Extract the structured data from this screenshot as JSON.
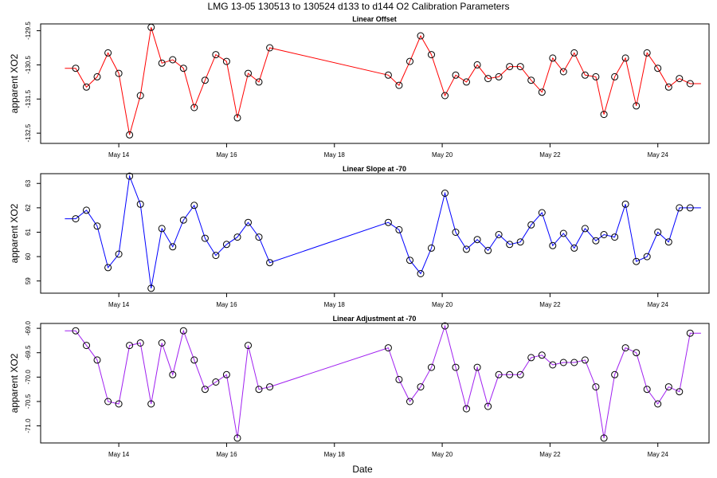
{
  "figure": {
    "title": "LMG   13-05    130513 to 130524    d133 to d144   O2 Calibration Parameters",
    "xlabel": "Date"
  },
  "x_ticks": [
    "May 14",
    "May 16",
    "May 18",
    "May 20",
    "May 22",
    "May 24"
  ],
  "x_tick_values": [
    14,
    16,
    18,
    20,
    22,
    24
  ],
  "xlim": [
    12.55,
    24.95
  ],
  "chart_data": [
    {
      "type": "line",
      "title": "Linear Offset",
      "ylabel": "apparent XO2",
      "color": "#ff0000",
      "ylim": [
        -132.8,
        -129.3
      ],
      "y_ticks": [
        -129.5,
        -130.5,
        -131.5,
        -132.5
      ],
      "y_tick_labels": [
        "-129.5",
        "-130.5",
        "-131.5",
        "-132.5"
      ],
      "x": [
        13.0,
        13.2,
        13.4,
        13.6,
        13.8,
        14.0,
        14.2,
        14.4,
        14.6,
        14.8,
        15.0,
        15.2,
        15.4,
        15.6,
        15.8,
        16.0,
        16.2,
        16.4,
        16.6,
        16.8,
        19.0,
        19.2,
        19.4,
        19.6,
        19.8,
        20.05,
        20.25,
        20.45,
        20.65,
        20.85,
        21.05,
        21.25,
        21.45,
        21.65,
        21.85,
        22.05,
        22.25,
        22.45,
        22.65,
        22.85,
        23.0,
        23.2,
        23.4,
        23.6,
        23.8,
        24.0,
        24.2,
        24.4,
        24.6,
        24.8
      ],
      "values": [
        -130.6,
        -130.6,
        -131.15,
        -130.85,
        -130.15,
        -130.75,
        -132.55,
        -131.4,
        -129.4,
        -130.45,
        -130.35,
        -130.6,
        -131.75,
        -130.95,
        -130.2,
        -130.4,
        -132.05,
        -130.75,
        -131.0,
        -130.0,
        -130.8,
        -131.1,
        -130.4,
        -129.65,
        -130.2,
        -131.4,
        -130.8,
        -131.0,
        -130.5,
        -130.9,
        -130.85,
        -130.55,
        -130.55,
        -130.95,
        -131.3,
        -130.3,
        -130.7,
        -130.15,
        -130.8,
        -130.85,
        -131.95,
        -130.85,
        -130.3,
        -131.7,
        -130.15,
        -130.6,
        -131.15,
        -130.9,
        -131.05,
        -131.05
      ],
      "markers": [
        false,
        true,
        true,
        true,
        true,
        true,
        true,
        true,
        true,
        true,
        true,
        true,
        true,
        true,
        true,
        true,
        true,
        true,
        true,
        true,
        true,
        true,
        true,
        true,
        true,
        true,
        true,
        true,
        true,
        true,
        true,
        true,
        true,
        true,
        true,
        true,
        true,
        true,
        true,
        true,
        true,
        true,
        true,
        true,
        true,
        true,
        true,
        true,
        true,
        false
      ]
    },
    {
      "type": "line",
      "title": "Linear Slope at -70",
      "ylabel": "apparent XO2",
      "color": "#0000ff",
      "ylim": [
        58.5,
        63.4
      ],
      "y_ticks": [
        59,
        60,
        61,
        62,
        63
      ],
      "y_tick_labels": [
        "59",
        "60",
        "61",
        "62",
        "63"
      ],
      "x": [
        13.0,
        13.2,
        13.4,
        13.6,
        13.8,
        14.0,
        14.2,
        14.4,
        14.6,
        14.8,
        15.0,
        15.2,
        15.4,
        15.6,
        15.8,
        16.0,
        16.2,
        16.4,
        16.6,
        16.8,
        19.0,
        19.2,
        19.4,
        19.6,
        19.8,
        20.05,
        20.25,
        20.45,
        20.65,
        20.85,
        21.05,
        21.25,
        21.45,
        21.65,
        21.85,
        22.05,
        22.25,
        22.45,
        22.65,
        22.85,
        23.0,
        23.2,
        23.4,
        23.6,
        23.8,
        24.0,
        24.2,
        24.4,
        24.6,
        24.8
      ],
      "values": [
        61.55,
        61.55,
        61.9,
        61.25,
        59.55,
        60.1,
        63.3,
        62.15,
        58.7,
        61.15,
        60.4,
        61.5,
        62.1,
        60.75,
        60.05,
        60.5,
        60.8,
        61.4,
        60.8,
        59.75,
        61.4,
        61.1,
        59.85,
        59.3,
        60.35,
        62.6,
        61.0,
        60.3,
        60.7,
        60.25,
        60.9,
        60.5,
        60.6,
        61.3,
        61.8,
        60.45,
        60.95,
        60.35,
        61.15,
        60.65,
        60.9,
        60.8,
        62.15,
        59.8,
        60.0,
        61.0,
        60.6,
        62.0,
        62.0,
        62.0
      ],
      "markers": [
        false,
        true,
        true,
        true,
        true,
        true,
        true,
        true,
        true,
        true,
        true,
        true,
        true,
        true,
        true,
        true,
        true,
        true,
        true,
        true,
        true,
        true,
        true,
        true,
        true,
        true,
        true,
        true,
        true,
        true,
        true,
        true,
        true,
        true,
        true,
        true,
        true,
        true,
        true,
        true,
        true,
        true,
        true,
        true,
        true,
        true,
        true,
        true,
        true,
        false
      ]
    },
    {
      "type": "line",
      "title": "Linear Adjustment at -70",
      "ylabel": "apparent XO2",
      "color": "#a020f0",
      "ylim": [
        -71.35,
        -68.9
      ],
      "y_ticks": [
        -69.0,
        -69.5,
        -70.0,
        -70.5,
        -71.0
      ],
      "y_tick_labels": [
        "-69.0",
        "-69.5",
        "-70.0",
        "-70.5",
        "-71.0"
      ],
      "x": [
        13.0,
        13.2,
        13.4,
        13.6,
        13.8,
        14.0,
        14.2,
        14.4,
        14.6,
        14.8,
        15.0,
        15.2,
        15.4,
        15.6,
        15.8,
        16.0,
        16.2,
        16.4,
        16.6,
        16.8,
        19.0,
        19.2,
        19.4,
        19.6,
        19.8,
        20.05,
        20.25,
        20.45,
        20.65,
        20.85,
        21.05,
        21.25,
        21.45,
        21.65,
        21.85,
        22.05,
        22.25,
        22.45,
        22.65,
        22.85,
        23.0,
        23.2,
        23.4,
        23.6,
        23.8,
        24.0,
        24.2,
        24.4,
        24.6,
        24.8
      ],
      "values": [
        -69.05,
        -69.05,
        -69.35,
        -69.65,
        -70.5,
        -70.55,
        -69.35,
        -69.3,
        -70.55,
        -69.3,
        -69.95,
        -69.05,
        -69.65,
        -70.25,
        -70.1,
        -69.95,
        -71.25,
        -69.35,
        -70.25,
        -70.2,
        -69.4,
        -70.05,
        -70.5,
        -70.2,
        -69.8,
        -68.95,
        -69.8,
        -70.65,
        -69.8,
        -70.6,
        -69.95,
        -69.95,
        -69.95,
        -69.6,
        -69.55,
        -69.75,
        -69.7,
        -69.7,
        -69.65,
        -70.2,
        -71.25,
        -69.95,
        -69.4,
        -69.5,
        -70.25,
        -70.55,
        -70.2,
        -70.3,
        -69.1,
        -69.1
      ],
      "markers": [
        false,
        true,
        true,
        true,
        true,
        true,
        true,
        true,
        true,
        true,
        true,
        true,
        true,
        true,
        true,
        true,
        true,
        true,
        true,
        true,
        true,
        true,
        true,
        true,
        true,
        true,
        true,
        true,
        true,
        true,
        true,
        true,
        true,
        true,
        true,
        true,
        true,
        true,
        true,
        true,
        true,
        true,
        true,
        true,
        true,
        true,
        true,
        true,
        true,
        false
      ]
    }
  ]
}
